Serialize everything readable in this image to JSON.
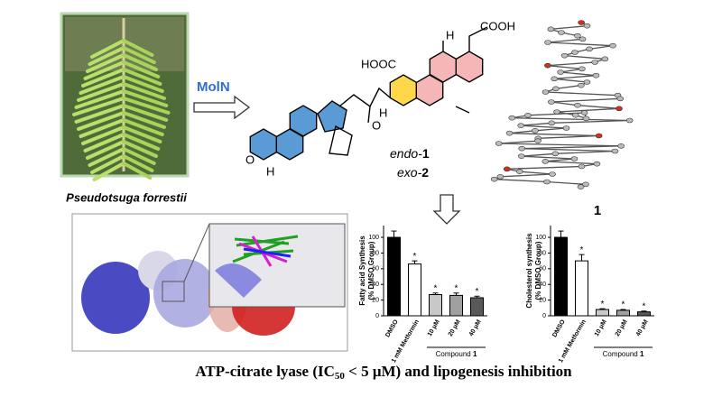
{
  "photo_caption": "Pseudotsuga forrestii",
  "enzyme": "MolN",
  "molecule": {
    "labels": [
      "COOH",
      "HOOC",
      "H",
      "H",
      "O",
      "O",
      "H"
    ]
  },
  "products": [
    {
      "prefix": "endo-",
      "number": "1"
    },
    {
      "prefix": "exo-",
      "number": "2"
    }
  ],
  "crystal_label": "1",
  "caption": {
    "parts": [
      "ATP-citrate lyase (IC",
      "50",
      " < 5 μM) and lipogenesis inhibition"
    ]
  },
  "chart_data": [
    {
      "type": "bar",
      "y_label": [
        "Fatty acid Synthesis",
        "(% DMSO Group)"
      ],
      "categories": [
        "DMSO",
        "1 mM Metformin",
        "10 μM",
        "20 μM",
        "40 μM"
      ],
      "values": [
        100,
        66,
        27,
        26,
        23
      ],
      "errors": [
        8,
        4,
        2,
        3,
        2
      ],
      "markers": [
        null,
        "*",
        "*",
        "*",
        "*"
      ],
      "colors": [
        "#000000",
        "#ffffff",
        "#c8c8c8",
        "#a0a0a0",
        "#595959"
      ],
      "group_label": [
        "Compound ",
        "1"
      ],
      "ylim": [
        0,
        115
      ],
      "yticks": [
        0,
        20,
        40,
        60,
        80,
        100
      ]
    },
    {
      "type": "bar",
      "y_label": [
        "Cholesterol synthesis",
        "(% DMSO Group)"
      ],
      "categories": [
        "DMSO",
        "1 mM Metformin",
        "10 μM",
        "20 μM",
        "40 μM"
      ],
      "values": [
        100,
        70,
        8,
        7,
        5
      ],
      "errors": [
        8,
        8,
        1,
        1,
        1
      ],
      "markers": [
        null,
        "*",
        "*",
        "*",
        "*"
      ],
      "colors": [
        "#000000",
        "#ffffff",
        "#c8c8c8",
        "#a0a0a0",
        "#595959"
      ],
      "group_label": [
        "Compound ",
        "1"
      ],
      "ylim": [
        0,
        115
      ],
      "yticks": [
        0,
        20,
        40,
        60,
        80,
        100
      ]
    }
  ]
}
